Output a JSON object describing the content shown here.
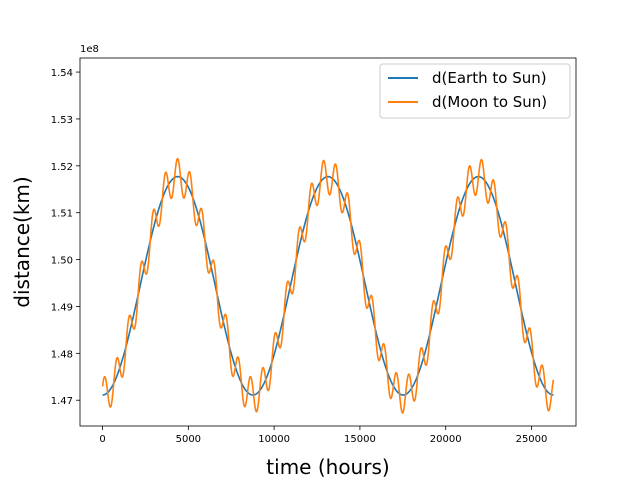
{
  "chart_data": {
    "type": "line",
    "xlabel": "time (hours)",
    "ylabel": "distance(km)",
    "offset_label": "1e8",
    "xlim": [
      -1314,
      27594
    ],
    "ylim": [
      146450000,
      154300000
    ],
    "x_ticks": [
      0,
      5000,
      10000,
      15000,
      20000,
      25000
    ],
    "x_tick_labels": [
      "0",
      "5000",
      "10000",
      "15000",
      "20000",
      "25000"
    ],
    "y_ticks": [
      147000000,
      148000000,
      149000000,
      150000000,
      151000000,
      152000000,
      153000000,
      154000000
    ],
    "y_tick_labels": [
      "1.47",
      "1.48",
      "1.49",
      "1.50",
      "1.51",
      "1.52",
      "1.53",
      "1.54"
    ],
    "grid": false,
    "legend_position": "top-right",
    "series": [
      {
        "name": "d(Earth to Sun)",
        "color": "#1f77b4",
        "x_range": [
          0,
          26280
        ],
        "sample_step": 60,
        "model": {
          "type": "sinusoid",
          "mean": 149440000,
          "amplitude": 2330000,
          "period_hours": 8760,
          "min_at_hours": 0
        }
      },
      {
        "name": "d(Moon to Sun)",
        "color": "#ff7f0e",
        "x_range": [
          0,
          26280
        ],
        "sample_step": 20,
        "model": {
          "type": "sinusoid_with_monthly_ripple",
          "mean": 149440000,
          "amplitude": 2330000,
          "period_hours": 8760,
          "min_at_hours": 0,
          "ripple_amplitude": 384000,
          "ripple_period_hours": 708.7,
          "ripple_phase_rad": 0.5
        }
      }
    ]
  }
}
